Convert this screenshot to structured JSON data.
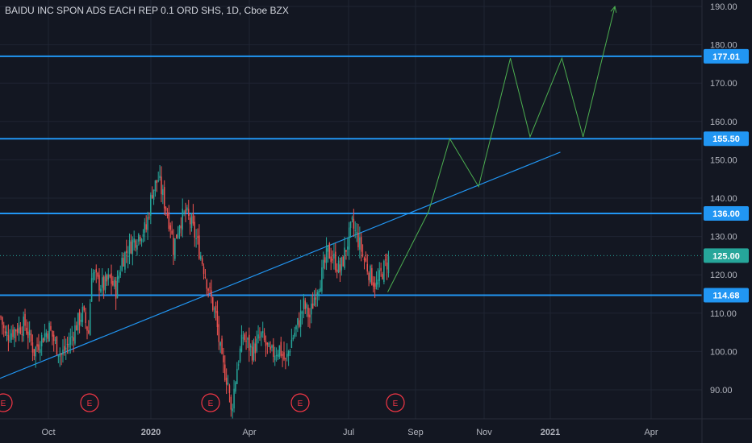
{
  "header": {
    "title": "BAIDU INC SPON ADS EACH REP 0.1 ORD SHS, 1D, Cboe BZX"
  },
  "colors": {
    "background": "#131722",
    "grid": "#1f2433",
    "up": "#26a69a",
    "down": "#ef5350",
    "level_line": "#2196f3",
    "trend_line": "#2196f3",
    "projection": "#4caf50",
    "earnings": "#f23645",
    "last_price": "#26a69a"
  },
  "chart_data": {
    "type": "candlestick",
    "title": "BAIDU INC SPON ADS EACH REP 0.1 ORD SHS, 1D, Cboe BZX",
    "x_axis": {
      "ticks": [
        "Oct",
        "2020",
        "Apr",
        "Jul",
        "Sep",
        "Nov",
        "2021",
        "Apr"
      ]
    },
    "y_axis": {
      "range": [
        82,
        191
      ],
      "ticks": [
        90,
        100,
        110,
        120,
        130,
        140,
        150,
        160,
        170,
        180,
        190
      ],
      "tick_labels": [
        "90.00",
        "100.00",
        "110.00",
        "120.00",
        "130.00",
        "140.00",
        "150.00",
        "160.00",
        "170.00",
        "180.00",
        "190.00"
      ]
    },
    "grid": true,
    "horizontal_levels": [
      {
        "value": 177.01,
        "label": "177.01"
      },
      {
        "value": 155.5,
        "label": "155.50"
      },
      {
        "value": 136.0,
        "label": "136.00"
      },
      {
        "value": 114.68,
        "label": "114.68"
      }
    ],
    "last_price": {
      "value": 125.0,
      "label": "125.00"
    },
    "earnings_markers": [
      "E",
      "E",
      "E",
      "E",
      "E"
    ],
    "price_path_anchors": [
      [
        0,
        109
      ],
      [
        3,
        104
      ],
      [
        10,
        106
      ],
      [
        16,
        107
      ],
      [
        22,
        100
      ],
      [
        26,
        103
      ],
      [
        32,
        106
      ],
      [
        36,
        102
      ],
      [
        40,
        99
      ],
      [
        46,
        103
      ],
      [
        50,
        107
      ],
      [
        54,
        110
      ],
      [
        58,
        105
      ],
      [
        60,
        121
      ],
      [
        64,
        118
      ],
      [
        68,
        117
      ],
      [
        72,
        119
      ],
      [
        76,
        116
      ],
      [
        80,
        124
      ],
      [
        86,
        128
      ],
      [
        92,
        131
      ],
      [
        96,
        132
      ],
      [
        100,
        142
      ],
      [
        104,
        145
      ],
      [
        108,
        139
      ],
      [
        112,
        133
      ],
      [
        114,
        127
      ],
      [
        118,
        134
      ],
      [
        122,
        136
      ],
      [
        126,
        133
      ],
      [
        130,
        128
      ],
      [
        134,
        122
      ],
      [
        138,
        115
      ],
      [
        142,
        109
      ],
      [
        146,
        97
      ],
      [
        150,
        92
      ],
      [
        152,
        84
      ],
      [
        156,
        96
      ],
      [
        160,
        104
      ],
      [
        166,
        100
      ],
      [
        172,
        104
      ],
      [
        178,
        99
      ],
      [
        184,
        101
      ],
      [
        188,
        97
      ],
      [
        192,
        103
      ],
      [
        196,
        107
      ],
      [
        200,
        112
      ],
      [
        204,
        109
      ],
      [
        208,
        116
      ],
      [
        212,
        120
      ],
      [
        216,
        126
      ],
      [
        220,
        124
      ],
      [
        224,
        121
      ],
      [
        228,
        127
      ],
      [
        232,
        133
      ],
      [
        236,
        129
      ],
      [
        240,
        124
      ],
      [
        244,
        120
      ],
      [
        248,
        117
      ],
      [
        252,
        121
      ],
      [
        256,
        124
      ]
    ],
    "trend_line": {
      "from": [
        0,
        93
      ],
      "to": [
        370,
        152
      ]
    },
    "projection_path": [
      [
        256,
        115.5
      ],
      [
        283,
        136.5
      ],
      [
        297,
        155.5
      ],
      [
        316,
        143
      ],
      [
        337,
        176.5
      ],
      [
        350,
        156
      ],
      [
        371,
        176.5
      ],
      [
        385,
        156
      ],
      [
        406,
        190
      ]
    ]
  }
}
